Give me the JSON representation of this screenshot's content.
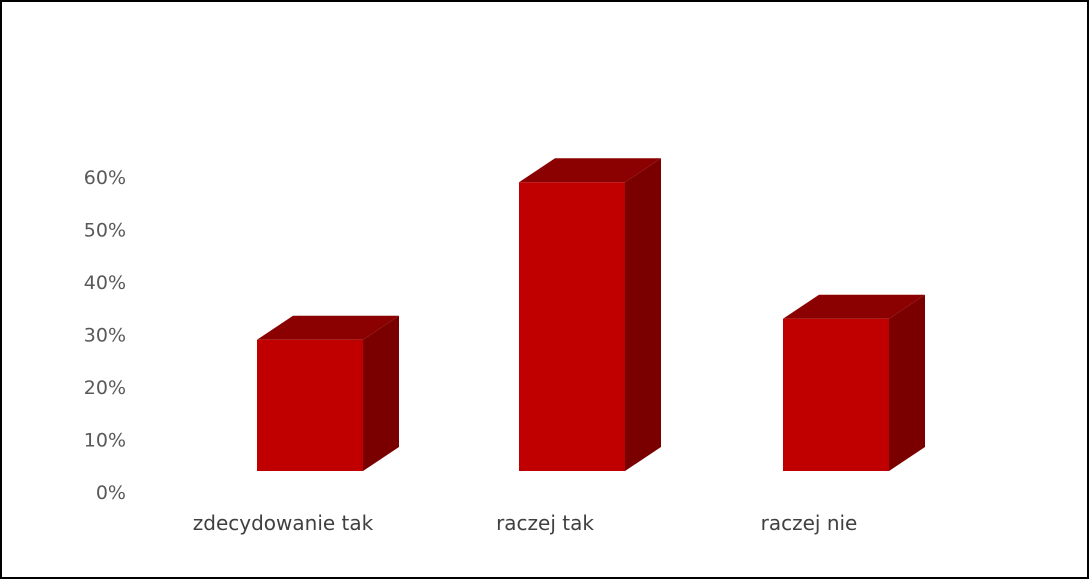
{
  "chart_data": {
    "type": "bar",
    "style": "3d-column",
    "categories": [
      "zdecydowanie tak",
      "raczej tak",
      "raczej nie"
    ],
    "values": [
      0.25,
      0.55,
      0.29
    ],
    "ylim": [
      0,
      0.6
    ],
    "yticks": [
      0,
      0.1,
      0.2,
      0.3,
      0.4,
      0.5,
      0.6
    ],
    "ytick_labels": [
      "0%",
      "10%",
      "20%",
      "30%",
      "40%",
      "50%",
      "60%"
    ],
    "grid": false,
    "legend": "none",
    "colors": {
      "front": "#c00000",
      "side": "#7a0000",
      "top": "#8b0000"
    }
  }
}
